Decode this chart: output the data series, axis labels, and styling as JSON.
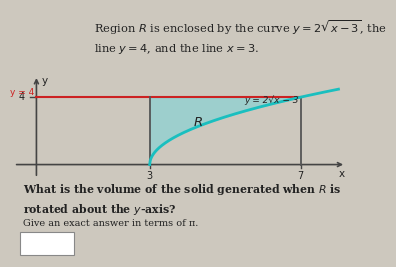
{
  "bg_color": "#cdc8be",
  "curve_color": "#1abfbf",
  "hline_color": "#cc2222",
  "vline_color": "#555555",
  "axis_color": "#444444",
  "region_fill_color": "#7dd4d8",
  "region_fill_alpha": 0.6,
  "text_color": "#222222",
  "curve_label": "y = 2√x − 3",
  "y4_label": "y = 4",
  "region_label": "R",
  "x_tick_3": "3",
  "x_tick_7": "7",
  "x_axis_label": "x",
  "y_axis_label": "y",
  "question_line1": "What is the volume of the solid generated when ",
  "question_R": "R",
  "question_line1_end": " is",
  "question_line2": "rotated about the y-axis?",
  "question_sub": "Give an exact answer in terms of π.",
  "x_min": -0.7,
  "x_max": 8.2,
  "y_min": -0.9,
  "y_max": 5.3,
  "y4_val": 4,
  "x3_val": 3,
  "x7_val": 7,
  "title_text": "Region $\\mathit{R}$ is enclosed by the curve $y = 2\\sqrt{x-3}$, the\nline $y=4$, and the line $x=3$.",
  "title_fontsize": 8.2,
  "graph_label_fontsize": 6.5,
  "question_fontsize": 7.8,
  "question_sub_fontsize": 7.0
}
